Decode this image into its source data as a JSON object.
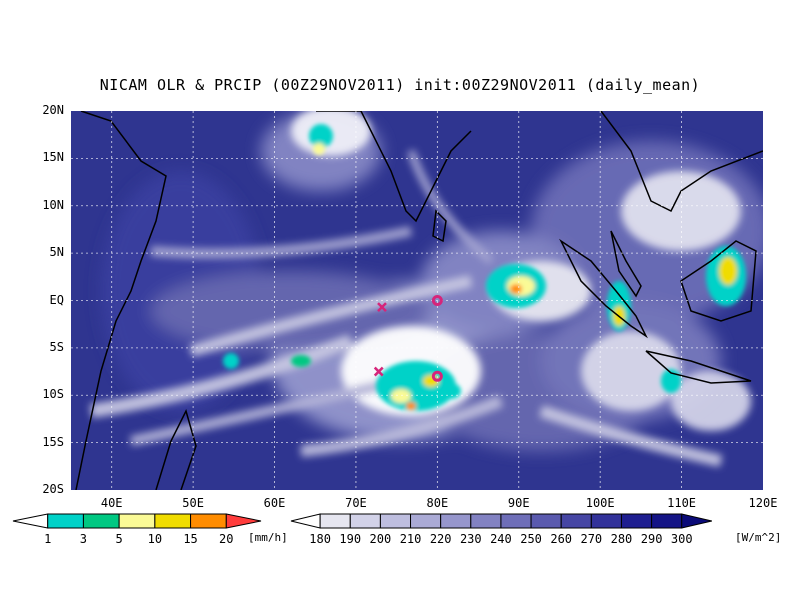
{
  "title": "NICAM OLR & PRCIP (00Z29NOV2011) init:00Z29NOV2011 (daily_mean)",
  "map": {
    "lat_labels": [
      "20N",
      "15N",
      "10N",
      "5N",
      "EQ",
      "5S",
      "10S",
      "15S",
      "20S"
    ],
    "lon_labels": [
      "40E",
      "50E",
      "60E",
      "70E",
      "80E",
      "90E",
      "100E",
      "110E",
      "120E"
    ],
    "lon_range": [
      35,
      120
    ],
    "lat_range": [
      -20,
      20
    ],
    "grid": true,
    "grid_style": "dotted",
    "markers": [
      {
        "type": "cross",
        "color": "#d6257a",
        "lon": 73.2,
        "lat": -0.7
      },
      {
        "type": "cross",
        "color": "#d6257a",
        "lon": 72.8,
        "lat": -7.5
      },
      {
        "type": "circle",
        "color": "#d6257a",
        "lon": 80.0,
        "lat": 0.0
      },
      {
        "type": "circle",
        "color": "#d6257a",
        "lon": 80.0,
        "lat": -8.0
      }
    ]
  },
  "precip_colorbar": {
    "labels": [
      "1",
      "3",
      "5",
      "10",
      "15",
      "20"
    ],
    "unit": "[mm/h]",
    "colors": [
      "#00d2c8",
      "#00c882",
      "#fafa96",
      "#f0dc00",
      "#ff8c00",
      "#ff3c3c"
    ]
  },
  "olr_colorbar": {
    "labels": [
      "180",
      "190",
      "200",
      "210",
      "220",
      "230",
      "240",
      "250",
      "260",
      "270",
      "280",
      "290",
      "300"
    ],
    "unit": "[W/m^2]",
    "colors": [
      "#ffffff",
      "#e6e6f0",
      "#d2d2e8",
      "#bebedf",
      "#aaaad5",
      "#9696cc",
      "#8282c2",
      "#6e6eb8",
      "#5a5aae",
      "#4646a4",
      "#32329a",
      "#1e1e90",
      "#141486",
      "#0a0a78"
    ]
  },
  "colors": {
    "background": "#ffffff",
    "ocean_base": "#2a2f8c",
    "coastline": "#000000",
    "marker": "#d6257a"
  }
}
